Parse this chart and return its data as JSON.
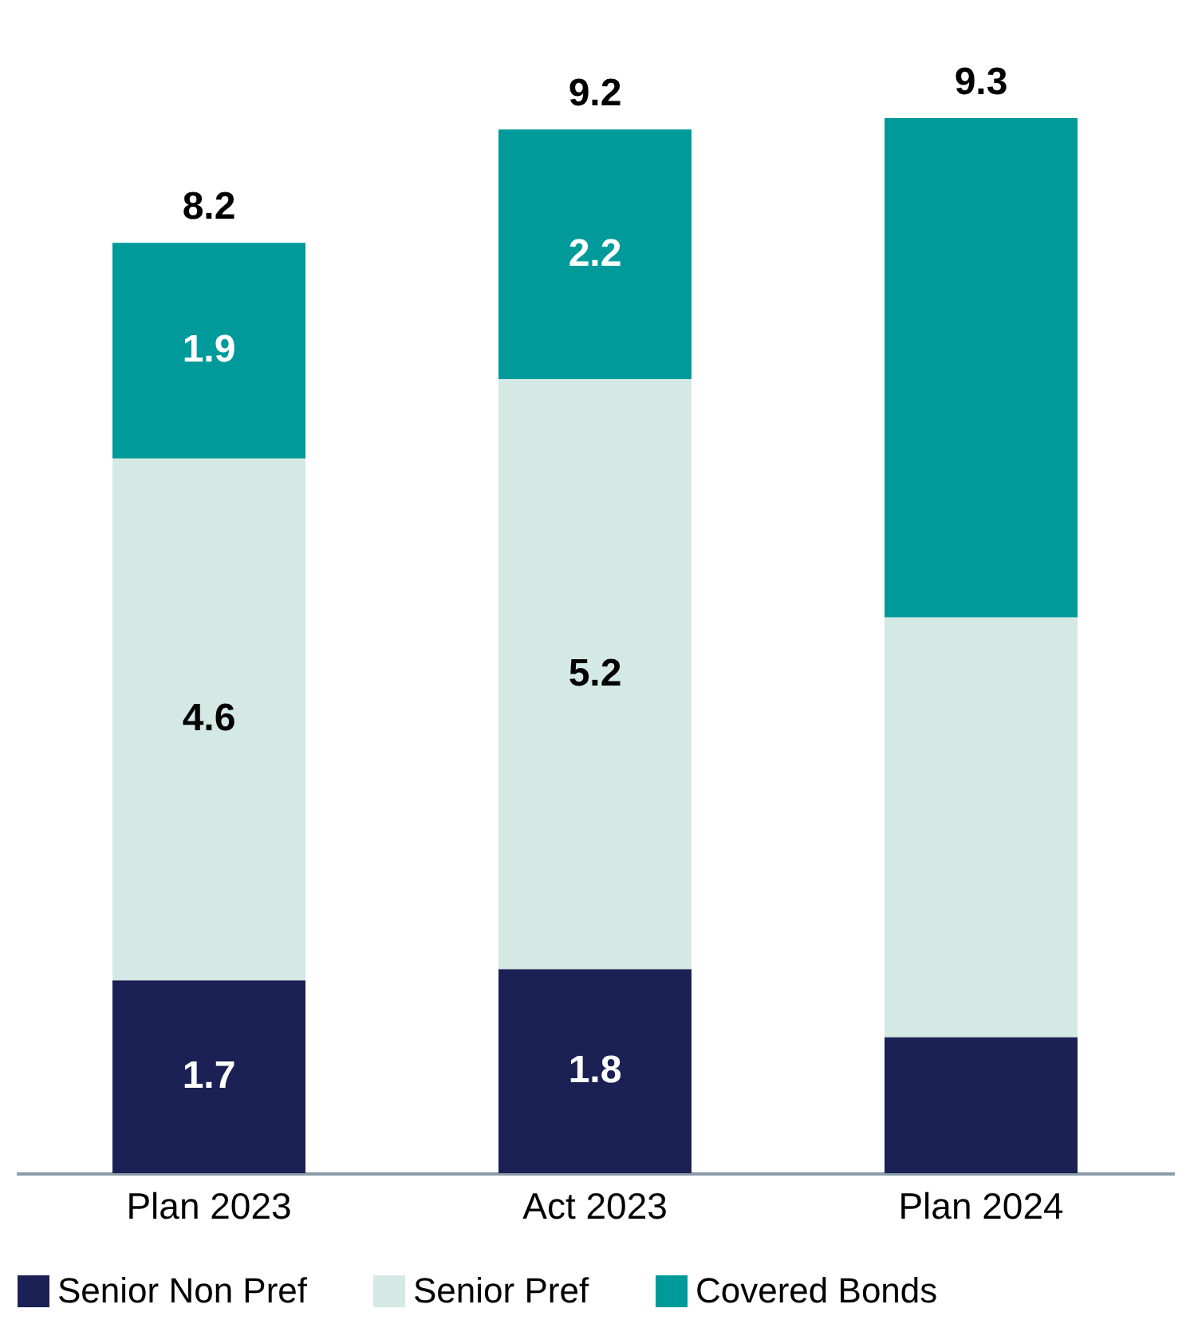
{
  "chart_data": {
    "type": "bar",
    "stacked": true,
    "categories": [
      "Plan 2023",
      "Act 2023",
      "Plan 2024"
    ],
    "series": [
      {
        "name": "Senior Non Pref",
        "color": "#1b2155",
        "values": [
          1.7,
          1.8,
          1.2
        ],
        "value_labels": [
          "1.7",
          "1.8",
          null
        ]
      },
      {
        "name": "Senior Pref",
        "color": "#d4e9e4",
        "values": [
          4.6,
          5.2,
          3.7
        ],
        "value_labels": [
          "4.6",
          "5.2",
          null
        ]
      },
      {
        "name": "Covered Bonds",
        "color": "#009a9a",
        "values": [
          1.9,
          2.2,
          4.4
        ],
        "value_labels": [
          "1.9",
          "2.2",
          null
        ]
      }
    ],
    "totals": [
      "8.2",
      "9.2",
      "9.3"
    ],
    "legend": "bottom"
  }
}
